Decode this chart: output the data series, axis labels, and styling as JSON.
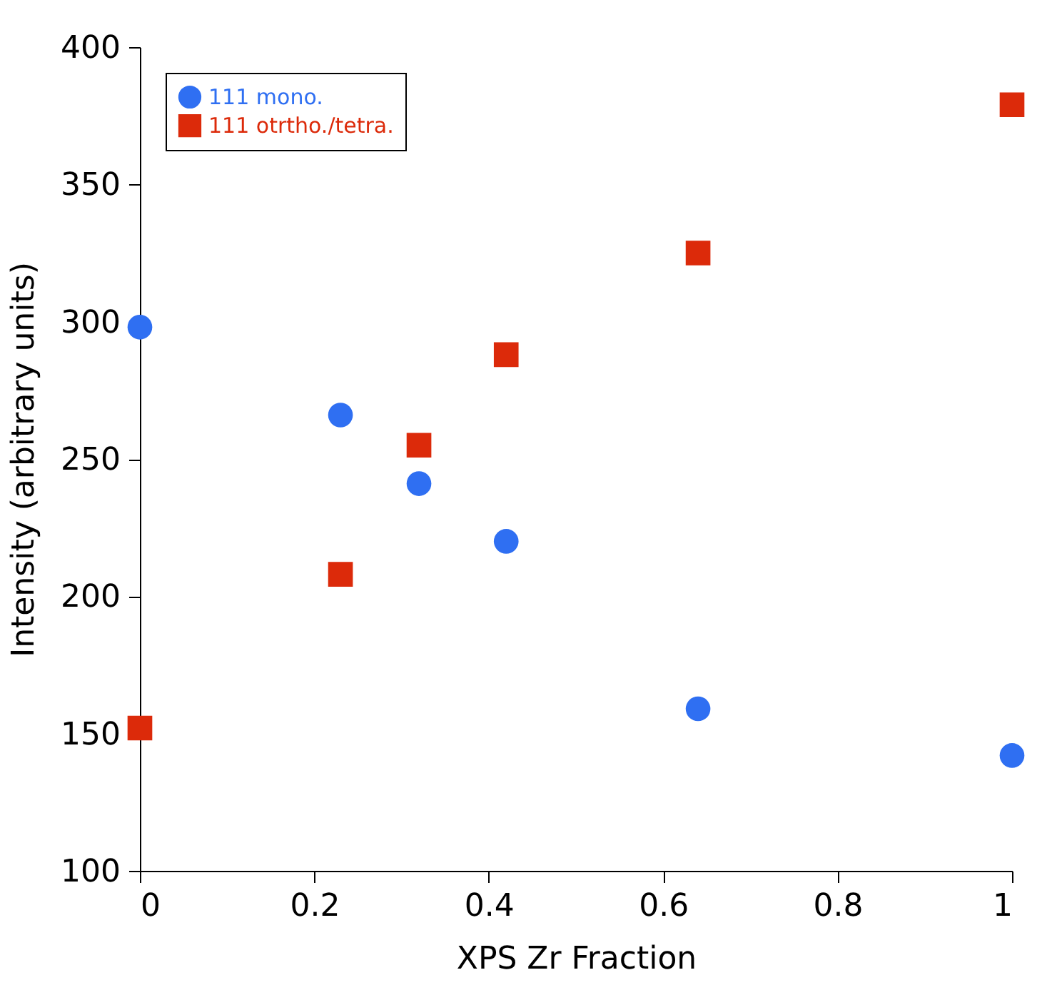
{
  "chart_data": {
    "type": "scatter",
    "xlabel": "XPS Zr Fraction",
    "ylabel": "Intensity (arbitrary units)",
    "x": [
      0,
      0.23,
      0.32,
      0.42,
      0.64,
      1
    ],
    "series": [
      {
        "name": "111 mono.",
        "color": "#2f6ff2",
        "marker": "circle",
        "values": [
          298,
          266,
          241,
          220,
          159,
          142
        ]
      },
      {
        "name": "111 otrtho./tetra.",
        "color": "#dc2a0a",
        "marker": "square",
        "values": [
          152,
          208,
          255,
          288,
          325,
          379
        ]
      }
    ],
    "xlim": [
      0,
      1
    ],
    "xticks": [
      0,
      0.2,
      0.4,
      0.6,
      0.8,
      1
    ],
    "ylim": [
      100,
      400
    ],
    "yticks": [
      100,
      150,
      200,
      250,
      300,
      350,
      400
    ],
    "grid": false,
    "legend": "top left"
  }
}
